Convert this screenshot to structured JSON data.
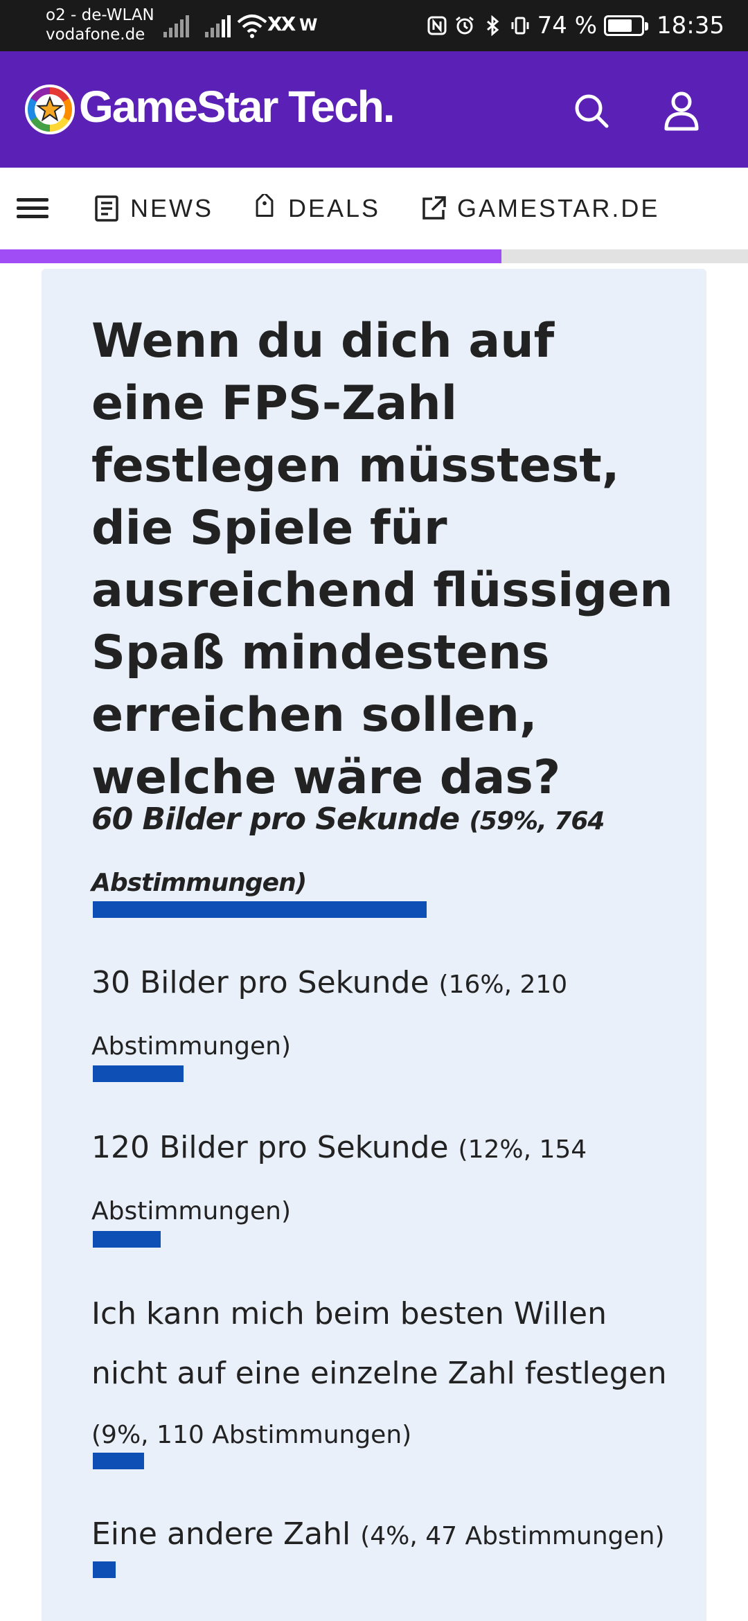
{
  "status_bar": {
    "carrier_line1": "o2 - de-WLAN",
    "carrier_line2": "vodafone.de",
    "extra1": "XX",
    "extra2": "W",
    "battery": "74 %",
    "battery_level": 0.74,
    "time": "18:35"
  },
  "header": {
    "logo_text": "GameStar Tech.",
    "brand_color": "#5b21b6",
    "icons": [
      "search-icon",
      "user-icon"
    ]
  },
  "nav": {
    "items": [
      {
        "label": "NEWS",
        "icon": "news-icon"
      },
      {
        "label": "DEALS",
        "icon": "tag-icon"
      },
      {
        "label": "GAMESTAR.DE",
        "icon": "external-link-icon"
      }
    ]
  },
  "reading_progress": 0.59,
  "poll": {
    "question": "Wenn du dich auf eine FPS-Zahl festlegen müsstest, die Spiele für ausreichend flüssigen Spaß mindestens erreichen sollen, welche wäre das?",
    "bar_color": "#0d4fb5",
    "options": [
      {
        "label": "60 Bilder pro Sekunde",
        "stat": "(59%, 764 Abstimmungen)",
        "percent": 59
      },
      {
        "label": "30 Bilder pro Sekunde",
        "stat": "(16%, 210 Abstimmungen)",
        "percent": 16
      },
      {
        "label": "120 Bilder pro Sekunde",
        "stat": "(12%, 154 Abstimmungen)",
        "percent": 12
      },
      {
        "label": "Ich kann mich beim besten Willen nicht auf eine einzelne Zahl festlegen",
        "stat": "(9%, 110 Abstimmungen)",
        "percent": 9
      },
      {
        "label": "Eine andere Zahl",
        "stat": "(4%, 47 Abstimmungen)",
        "percent": 4
      }
    ]
  }
}
